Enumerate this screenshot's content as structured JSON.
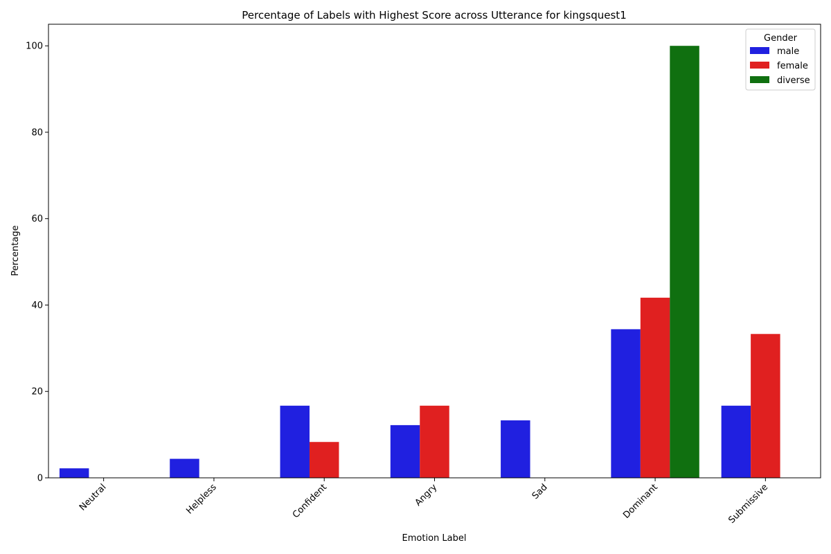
{
  "chart_data": {
    "type": "bar",
    "title": "Percentage of Labels with Highest Score across Utterance for kingsquest1",
    "xlabel": "Emotion Label",
    "ylabel": "Percentage",
    "categories": [
      "Neutral",
      "Helpless",
      "Confident",
      "Angry",
      "Sad",
      "Dominant",
      "Submissive"
    ],
    "ylim": [
      0,
      105
    ],
    "yticks": [
      0,
      20,
      40,
      60,
      80,
      100
    ],
    "grid": false,
    "legend": {
      "title": "Gender",
      "placement": "top-right"
    },
    "series": [
      {
        "name": "male",
        "color": "#2020e0",
        "values": [
          2.2,
          4.4,
          16.7,
          12.2,
          13.3,
          34.4,
          16.7
        ]
      },
      {
        "name": "female",
        "color": "#e02020",
        "values": [
          0,
          0,
          8.3,
          16.7,
          0,
          41.7,
          33.3
        ]
      },
      {
        "name": "diverse",
        "color": "#107010",
        "values": [
          0,
          0,
          0,
          0,
          0,
          100,
          0
        ]
      }
    ]
  }
}
